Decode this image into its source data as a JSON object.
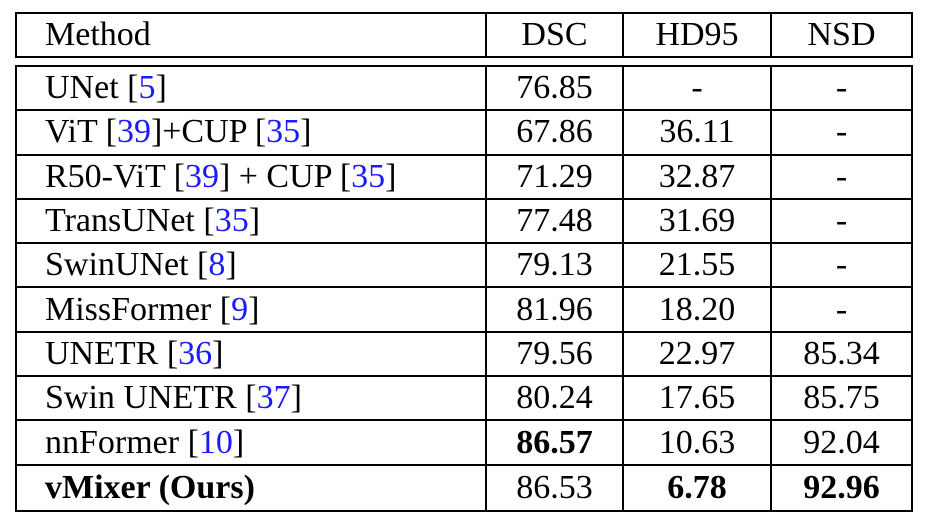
{
  "header": {
    "method": "Method",
    "dsc": "DSC",
    "hd95": "HD95",
    "nsd": "NSD"
  },
  "rows": [
    {
      "parts": [
        {
          "t": "UNet ["
        },
        {
          "r": "5"
        },
        {
          "t": "]"
        }
      ],
      "dsc": "76.85",
      "hd95": "-",
      "nsd": "-"
    },
    {
      "parts": [
        {
          "t": "ViT ["
        },
        {
          "r": "39"
        },
        {
          "t": "]+CUP ["
        },
        {
          "r": "35"
        },
        {
          "t": "]"
        }
      ],
      "dsc": "67.86",
      "hd95": "36.11",
      "nsd": "-"
    },
    {
      "parts": [
        {
          "t": "R50-ViT ["
        },
        {
          "r": "39"
        },
        {
          "t": "] + CUP ["
        },
        {
          "r": "35"
        },
        {
          "t": "]"
        }
      ],
      "dsc": "71.29",
      "hd95": "32.87",
      "nsd": "-"
    },
    {
      "parts": [
        {
          "t": "TransUNet ["
        },
        {
          "r": "35"
        },
        {
          "t": "]"
        }
      ],
      "dsc": "77.48",
      "hd95": "31.69",
      "nsd": "-"
    },
    {
      "parts": [
        {
          "t": "SwinUNet ["
        },
        {
          "r": "8"
        },
        {
          "t": "]"
        }
      ],
      "dsc": "79.13",
      "hd95": "21.55",
      "nsd": "-"
    },
    {
      "parts": [
        {
          "t": "MissFormer ["
        },
        {
          "r": "9"
        },
        {
          "t": "]"
        }
      ],
      "dsc": "81.96",
      "hd95": "18.20",
      "nsd": "-"
    },
    {
      "parts": [
        {
          "t": "UNETR ["
        },
        {
          "r": "36"
        },
        {
          "t": "]"
        }
      ],
      "dsc": "79.56",
      "hd95": "22.97",
      "nsd": "85.34"
    },
    {
      "parts": [
        {
          "t": "Swin UNETR ["
        },
        {
          "r": "37"
        },
        {
          "t": "]"
        }
      ],
      "dsc": "80.24",
      "hd95": "17.65",
      "nsd": "85.75"
    },
    {
      "parts": [
        {
          "t": "nnFormer ["
        },
        {
          "r": "10"
        },
        {
          "t": "]"
        }
      ],
      "dsc": "86.57",
      "hd95": "10.63",
      "nsd": "92.04",
      "bold": [
        "dsc"
      ]
    },
    {
      "parts": [
        {
          "t": "vMixer (Ours)"
        }
      ],
      "dsc": "86.53",
      "hd95": "6.78",
      "nsd": "92.96",
      "bold": [
        "method",
        "hd95",
        "nsd"
      ]
    }
  ]
}
